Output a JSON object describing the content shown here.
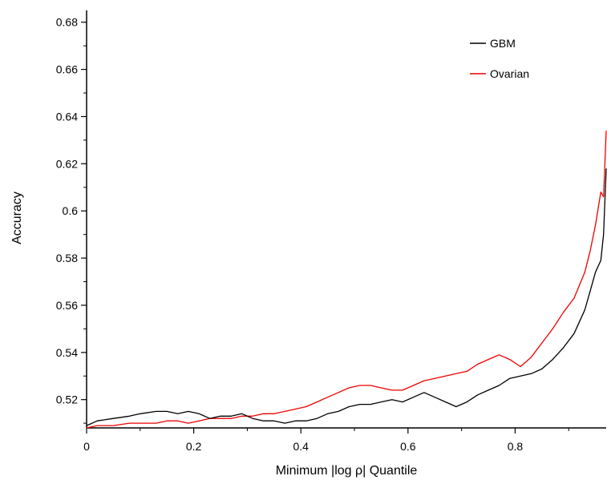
{
  "chart_data": {
    "type": "line",
    "title": "",
    "xlabel": "Minimum |log ρ| Quantile",
    "ylabel": "Accuracy",
    "xlim": [
      0,
      0.97
    ],
    "ylim": [
      0.508,
      0.685
    ],
    "x_ticks": [
      0,
      0.2,
      0.4,
      0.6,
      0.8
    ],
    "x_tick_labels": [
      "0",
      "0.2",
      "0.4",
      "0.6",
      "0.8"
    ],
    "y_ticks": [
      0.52,
      0.54,
      0.56,
      0.58,
      0.6,
      0.62,
      0.64,
      0.66,
      0.68
    ],
    "y_tick_labels": [
      "0.52",
      "0.54",
      "0.56",
      "0.58",
      "0.6",
      "0.62",
      "0.64",
      "0.66",
      "0.68"
    ],
    "grid": false,
    "legend_position": "top-right",
    "series": [
      {
        "name": "GBM",
        "color": "#000000",
        "x": [
          0,
          0.02,
          0.05,
          0.08,
          0.1,
          0.13,
          0.15,
          0.17,
          0.19,
          0.21,
          0.23,
          0.25,
          0.27,
          0.29,
          0.31,
          0.33,
          0.35,
          0.37,
          0.39,
          0.41,
          0.43,
          0.45,
          0.47,
          0.49,
          0.51,
          0.53,
          0.55,
          0.57,
          0.59,
          0.61,
          0.63,
          0.65,
          0.67,
          0.69,
          0.71,
          0.73,
          0.75,
          0.77,
          0.79,
          0.81,
          0.83,
          0.85,
          0.87,
          0.89,
          0.91,
          0.93,
          0.94,
          0.95,
          0.96,
          0.965,
          0.97
        ],
        "y": [
          0.509,
          0.511,
          0.512,
          0.513,
          0.514,
          0.515,
          0.515,
          0.514,
          0.515,
          0.514,
          0.512,
          0.513,
          0.513,
          0.514,
          0.512,
          0.511,
          0.511,
          0.51,
          0.511,
          0.511,
          0.512,
          0.514,
          0.515,
          0.517,
          0.518,
          0.518,
          0.519,
          0.52,
          0.519,
          0.521,
          0.523,
          0.521,
          0.519,
          0.517,
          0.519,
          0.522,
          0.524,
          0.526,
          0.529,
          0.53,
          0.531,
          0.533,
          0.537,
          0.542,
          0.548,
          0.558,
          0.566,
          0.574,
          0.579,
          0.59,
          0.618
        ]
      },
      {
        "name": "Ovarian",
        "color": "#ee0000",
        "x": [
          0,
          0.02,
          0.05,
          0.08,
          0.1,
          0.13,
          0.15,
          0.17,
          0.19,
          0.21,
          0.23,
          0.25,
          0.27,
          0.29,
          0.31,
          0.33,
          0.35,
          0.37,
          0.39,
          0.41,
          0.43,
          0.45,
          0.47,
          0.49,
          0.51,
          0.53,
          0.55,
          0.57,
          0.59,
          0.61,
          0.63,
          0.65,
          0.67,
          0.69,
          0.71,
          0.73,
          0.75,
          0.77,
          0.79,
          0.81,
          0.83,
          0.85,
          0.87,
          0.89,
          0.91,
          0.93,
          0.94,
          0.95,
          0.96,
          0.965,
          0.97
        ],
        "y": [
          0.508,
          0.509,
          0.509,
          0.51,
          0.51,
          0.51,
          0.511,
          0.511,
          0.51,
          0.511,
          0.512,
          0.512,
          0.512,
          0.513,
          0.513,
          0.514,
          0.514,
          0.515,
          0.516,
          0.517,
          0.519,
          0.521,
          0.523,
          0.525,
          0.526,
          0.526,
          0.525,
          0.524,
          0.524,
          0.526,
          0.528,
          0.529,
          0.53,
          0.531,
          0.532,
          0.535,
          0.537,
          0.539,
          0.537,
          0.534,
          0.538,
          0.544,
          0.55,
          0.557,
          0.563,
          0.574,
          0.583,
          0.594,
          0.608,
          0.606,
          0.634
        ]
      }
    ]
  }
}
